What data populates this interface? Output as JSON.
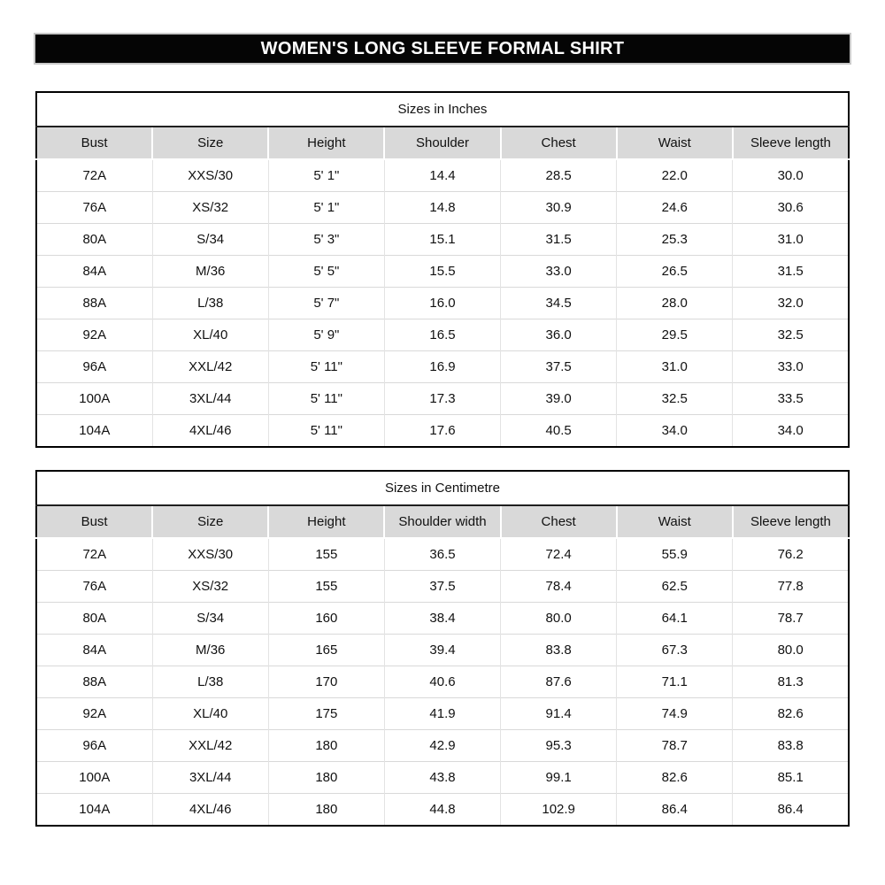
{
  "banner": {
    "title": "WOMEN'S LONG SLEEVE FORMAL SHIRT"
  },
  "colors": {
    "banner_bg": "#000000",
    "banner_text": "#ffffff",
    "header_row_bg": "#d9d9d9",
    "table_border": "#000000",
    "row_divider": "#d9d9d9"
  },
  "tables": [
    {
      "title": "Sizes in Inches",
      "headers": [
        "Bust",
        "Size",
        "Height",
        "Shoulder",
        "Chest",
        "Waist",
        "Sleeve length"
      ],
      "rows": [
        [
          "72A",
          "XXS/30",
          "5' 1\"",
          "14.4",
          "28.5",
          "22.0",
          "30.0"
        ],
        [
          "76A",
          "XS/32",
          "5' 1\"",
          "14.8",
          "30.9",
          "24.6",
          "30.6"
        ],
        [
          "80A",
          "S/34",
          "5' 3\"",
          "15.1",
          "31.5",
          "25.3",
          "31.0"
        ],
        [
          "84A",
          "M/36",
          "5' 5\"",
          "15.5",
          "33.0",
          "26.5",
          "31.5"
        ],
        [
          "88A",
          "L/38",
          "5' 7\"",
          "16.0",
          "34.5",
          "28.0",
          "32.0"
        ],
        [
          "92A",
          "XL/40",
          "5' 9\"",
          "16.5",
          "36.0",
          "29.5",
          "32.5"
        ],
        [
          "96A",
          "XXL/42",
          "5' 11\"",
          "16.9",
          "37.5",
          "31.0",
          "33.0"
        ],
        [
          "100A",
          "3XL/44",
          "5' 11\"",
          "17.3",
          "39.0",
          "32.5",
          "33.5"
        ],
        [
          "104A",
          "4XL/46",
          "5' 11\"",
          "17.6",
          "40.5",
          "34.0",
          "34.0"
        ]
      ]
    },
    {
      "title": "Sizes in Centimetre",
      "headers": [
        "Bust",
        "Size",
        "Height",
        "Shoulder width",
        "Chest",
        "Waist",
        "Sleeve length"
      ],
      "rows": [
        [
          "72A",
          "XXS/30",
          "155",
          "36.5",
          "72.4",
          "55.9",
          "76.2"
        ],
        [
          "76A",
          "XS/32",
          "155",
          "37.5",
          "78.4",
          "62.5",
          "77.8"
        ],
        [
          "80A",
          "S/34",
          "160",
          "38.4",
          "80.0",
          "64.1",
          "78.7"
        ],
        [
          "84A",
          "M/36",
          "165",
          "39.4",
          "83.8",
          "67.3",
          "80.0"
        ],
        [
          "88A",
          "L/38",
          "170",
          "40.6",
          "87.6",
          "71.1",
          "81.3"
        ],
        [
          "92A",
          "XL/40",
          "175",
          "41.9",
          "91.4",
          "74.9",
          "82.6"
        ],
        [
          "96A",
          "XXL/42",
          "180",
          "42.9",
          "95.3",
          "78.7",
          "83.8"
        ],
        [
          "100A",
          "3XL/44",
          "180",
          "43.8",
          "99.1",
          "82.6",
          "85.1"
        ],
        [
          "104A",
          "4XL/46",
          "180",
          "44.8",
          "102.9",
          "86.4",
          "86.4"
        ]
      ]
    }
  ]
}
